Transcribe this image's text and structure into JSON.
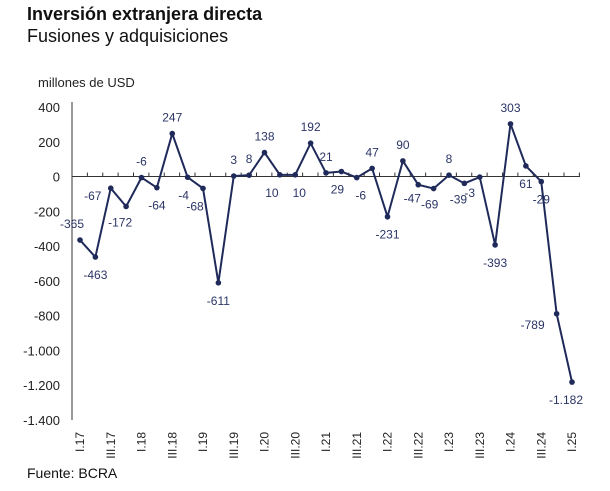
{
  "title": "Inversión extranjera directa",
  "subtitle": "Fusiones y adquisiciones",
  "source": "Fuente: BCRA",
  "chart_data": {
    "type": "line",
    "ylabel": "millones de USD",
    "ylim": [
      -1400,
      400
    ],
    "yticks": [
      400,
      200,
      0,
      -200,
      -400,
      -600,
      -800,
      -1000,
      -1200,
      -1400
    ],
    "ytick_labels": [
      "400",
      "200",
      "0",
      "-200",
      "-400",
      "-600",
      "-800",
      "-1.000",
      "-1.200",
      "-1.400"
    ],
    "xtick_labels": [
      "I.17",
      "III.17",
      "I.18",
      "III.18",
      "I.19",
      "III.19",
      "I.20",
      "III.20",
      "I.21",
      "III.21",
      "I.22",
      "III.22",
      "I.23",
      "III.23",
      "I.24",
      "III.24",
      "I.25"
    ],
    "values": [
      -365,
      -463,
      -67,
      -172,
      -6,
      -64,
      247,
      -4,
      -68,
      -611,
      3,
      8,
      138,
      10,
      10,
      192,
      21,
      29,
      -6,
      47,
      -231,
      90,
      -47,
      -69,
      8,
      -39,
      -3,
      -393,
      303,
      61,
      -29,
      -789,
      -1182
    ],
    "data_labels": [
      "-365",
      "-463",
      "-67",
      "-172",
      "-6",
      "-64",
      "247",
      "-4",
      "-68",
      "-611",
      "3",
      "8",
      "138",
      "10",
      "10",
      "192",
      "21",
      "29",
      "-6",
      "47",
      "-231",
      "90",
      "-47",
      "-69",
      "8",
      "-39",
      "-3",
      "-393",
      "303",
      "61",
      "-29",
      "-789",
      "-1.182"
    ],
    "line_color": "#1f2a5a",
    "grid": false
  }
}
